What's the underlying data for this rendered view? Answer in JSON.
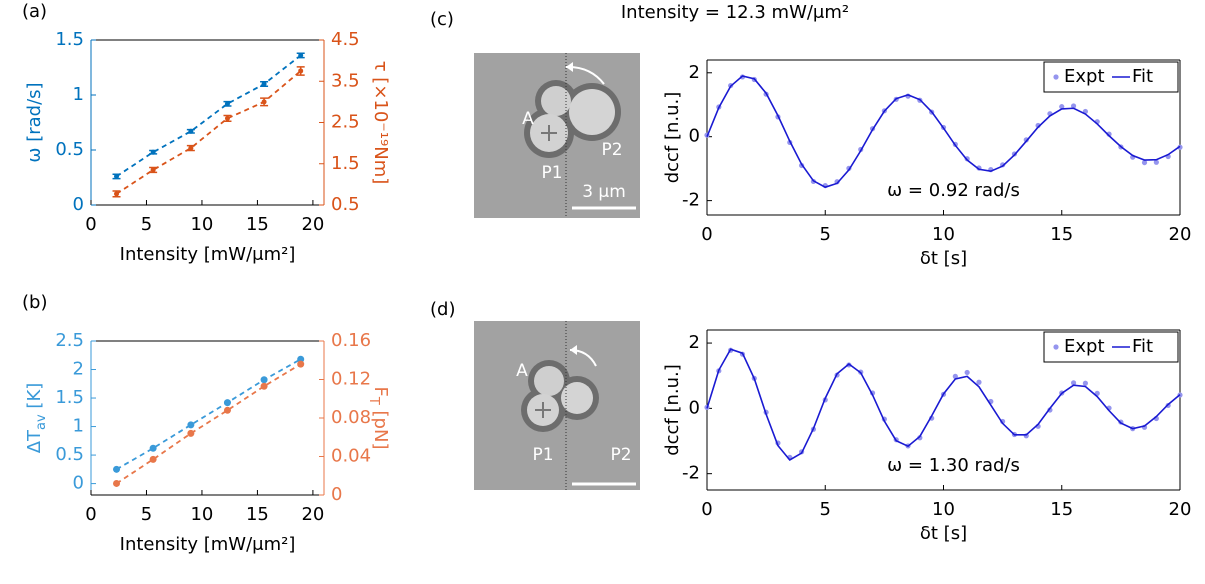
{
  "header": "Intensity = 12.3 mW/μm²",
  "images": [
    {
      "labels": [
        "A",
        "P1",
        "P2"
      ],
      "scale_bar": "3 μm"
    },
    {
      "labels": [
        "A",
        "P1",
        "P2"
      ]
    }
  ],
  "chart_data": [
    {
      "type": "scatter",
      "label": "(a)",
      "x": [
        2.3,
        5.6,
        9.0,
        12.3,
        15.6,
        18.9
      ],
      "xlim": [
        0,
        21
      ],
      "xticks": [
        0,
        5,
        10,
        15,
        20
      ],
      "xlabel": "Intensity [mW/μm²]",
      "ylabel": "ω [rad/s]",
      "ylim": [
        0,
        1.5
      ],
      "yticks": [
        0,
        0.5,
        1,
        1.5
      ],
      "y2label": "τ [×10⁻¹⁹Nm]",
      "y2lim": [
        0.5,
        4.5
      ],
      "y2ticks": [
        0.5,
        1.5,
        2.5,
        3.5,
        4.5
      ],
      "series": [
        {
          "color": "#0072bd",
          "values": [
            0.26,
            0.48,
            0.67,
            0.92,
            1.1,
            1.36
          ],
          "errors": [
            0.02,
            0.015,
            0.015,
            0.02,
            0.02,
            0.02
          ]
        },
        {
          "color": "#d95319",
          "axis": "y2",
          "values": [
            0.77,
            1.35,
            1.88,
            2.6,
            3.0,
            3.75
          ],
          "errors": [
            0.07,
            0.06,
            0.06,
            0.07,
            0.09,
            0.1
          ]
        }
      ]
    },
    {
      "type": "scatter",
      "label": "(b)",
      "x": [
        2.3,
        5.6,
        9.0,
        12.3,
        15.6,
        18.9
      ],
      "xlim": [
        0,
        21
      ],
      "xticks": [
        0,
        5,
        10,
        15,
        20
      ],
      "xlabel": "Intensity [mW/μm²]",
      "ylabel": [
        "ΔT",
        "av",
        " [K]"
      ],
      "ylim": [
        -0.2,
        2.5
      ],
      "yticks": [
        0,
        0.5,
        1,
        1.5,
        2,
        2.5
      ],
      "y2label": [
        "F",
        "T",
        " [pN]"
      ],
      "y2lim": [
        0,
        0.16
      ],
      "y2ticks": [
        0,
        0.04,
        0.08,
        0.12,
        0.16
      ],
      "series": [
        {
          "color": "#3a9ad9",
          "values": [
            0.25,
            0.62,
            1.03,
            1.42,
            1.82,
            2.18
          ]
        },
        {
          "color": "#e8774a",
          "axis": "y2",
          "values": [
            0.012,
            0.037,
            0.064,
            0.088,
            0.113,
            0.136
          ]
        }
      ]
    },
    {
      "type": "line",
      "label": "(c)",
      "x": [
        0,
        0.5,
        1,
        1.5,
        2,
        2.5,
        3,
        3.5,
        4,
        4.5,
        5,
        5.5,
        6,
        6.5,
        7,
        7.5,
        8,
        8.5,
        9,
        9.5,
        10,
        10.5,
        11,
        11.5,
        12,
        12.5,
        13,
        13.5,
        14,
        14.5,
        15,
        15.5,
        16,
        16.5,
        17,
        17.5,
        18,
        18.5,
        19,
        19.5,
        20
      ],
      "xlim": [
        0,
        20
      ],
      "xticks": [
        0,
        5,
        10,
        15,
        20
      ],
      "ylim": [
        -2.45,
        2.4
      ],
      "yticks": [
        -2,
        0,
        2
      ],
      "xlabel": "δt [s]",
      "ylabel": "dccf [n.u.]",
      "annotation": "ω = 0.92 rad/s",
      "legend": "upper right",
      "series": [
        {
          "name": "Expt",
          "color": "#9595ee",
          "marker": "dot",
          "values": [
            0.05,
            0.93,
            1.6,
            1.87,
            1.79,
            1.33,
            0.62,
            -0.18,
            -0.9,
            -1.4,
            -1.53,
            -1.41,
            -0.99,
            -0.4,
            0.25,
            0.81,
            1.17,
            1.27,
            1.14,
            0.77,
            0.29,
            -0.24,
            -0.69,
            -0.98,
            -1.03,
            -0.88,
            -0.54,
            -0.1,
            0.35,
            0.72,
            0.94,
            0.96,
            0.79,
            0.47,
            0.08,
            -0.32,
            -0.64,
            -0.81,
            -0.8,
            -0.62,
            -0.33
          ]
        },
        {
          "name": "Fit",
          "color": "#1a1ad2",
          "values": [
            0,
            0.91,
            1.58,
            1.9,
            1.81,
            1.36,
            0.66,
            -0.14,
            -0.86,
            -1.38,
            -1.58,
            -1.46,
            -1.04,
            -0.44,
            0.22,
            0.8,
            1.19,
            1.31,
            1.16,
            0.78,
            0.27,
            -0.27,
            -0.73,
            -1.02,
            -1.08,
            -0.92,
            -0.57,
            -0.14,
            0.3,
            0.65,
            0.87,
            0.89,
            0.71,
            0.4,
            0.03,
            -0.31,
            -0.59,
            -0.73,
            -0.72,
            -0.56,
            -0.3
          ]
        }
      ]
    },
    {
      "type": "line",
      "label": "(d)",
      "x": [
        0,
        0.5,
        1,
        1.5,
        2,
        2.5,
        3,
        3.5,
        4,
        4.5,
        5,
        5.5,
        6,
        6.5,
        7,
        7.5,
        8,
        8.5,
        9,
        9.5,
        10,
        10.5,
        11,
        11.5,
        12,
        12.5,
        13,
        13.5,
        14,
        14.5,
        15,
        15.5,
        16,
        16.5,
        17,
        17.5,
        18,
        18.5,
        19,
        19.5,
        20
      ],
      "xlim": [
        0,
        20
      ],
      "xticks": [
        0,
        5,
        10,
        15,
        20
      ],
      "ylim": [
        -2.5,
        2.4
      ],
      "yticks": [
        -2,
        0,
        2
      ],
      "xlabel": "δt [s]",
      "ylabel": "dccf [n.u.]",
      "annotation": "ω = 1.30 rad/s",
      "legend": "upper right",
      "series": [
        {
          "name": "Expt",
          "color": "#9595ee",
          "marker": "dot",
          "values": [
            0.03,
            1.15,
            1.78,
            1.66,
            0.92,
            -0.12,
            -1.06,
            -1.5,
            -1.33,
            -0.64,
            0.26,
            1.02,
            1.33,
            1.11,
            0.47,
            -0.33,
            -0.96,
            -1.15,
            -0.9,
            -0.3,
            0.43,
            0.98,
            1.1,
            0.8,
            0.21,
            -0.4,
            -0.8,
            -0.84,
            -0.55,
            -0.05,
            0.47,
            0.78,
            0.77,
            0.46,
            0.01,
            -0.42,
            -0.62,
            -0.58,
            -0.31,
            0.09,
            0.41
          ]
        },
        {
          "name": "Fit",
          "color": "#1a1ad2",
          "values": [
            0,
            1.17,
            1.81,
            1.69,
            0.91,
            -0.18,
            -1.14,
            -1.58,
            -1.37,
            -0.62,
            0.31,
            1.06,
            1.36,
            1.09,
            0.41,
            -0.39,
            -0.99,
            -1.16,
            -0.86,
            -0.23,
            0.44,
            0.9,
            0.98,
            0.66,
            0.1,
            -0.46,
            -0.81,
            -0.81,
            -0.49,
            0.0,
            0.46,
            0.71,
            0.67,
            0.36,
            -0.07,
            -0.45,
            -0.62,
            -0.54,
            -0.25,
            0.12,
            0.42
          ]
        }
      ]
    }
  ]
}
